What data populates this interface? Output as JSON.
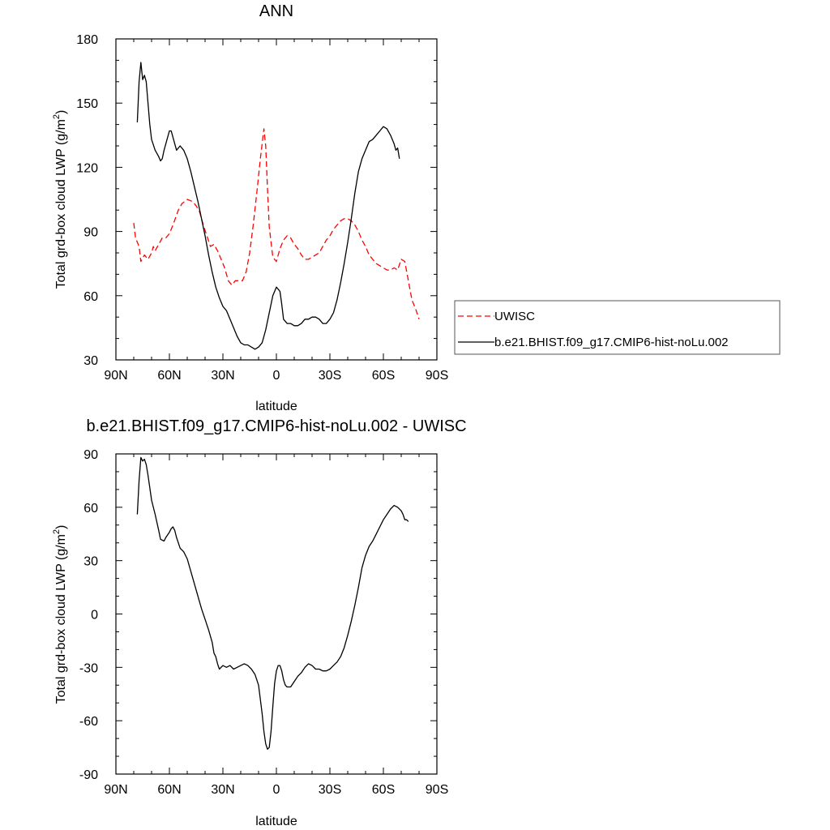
{
  "chart_data": [
    {
      "type": "line",
      "title": "ANN",
      "xlabel": "latitude",
      "ylabel_main": "Total grd-box cloud LWP (g/m",
      "ylabel_sup": "2",
      "ylabel_close": ")",
      "xlim": [
        90,
        -90
      ],
      "ylim": [
        30,
        180
      ],
      "x_ticks": [
        90,
        60,
        30,
        0,
        -30,
        -60,
        -90
      ],
      "x_tick_labels": [
        "90N",
        "60N",
        "30N",
        "0",
        "30S",
        "60S",
        "90S"
      ],
      "y_ticks": [
        30,
        60,
        90,
        120,
        150,
        180
      ],
      "y_tick_labels": [
        "30",
        "60",
        "90",
        "120",
        "150",
        "180"
      ],
      "legend": {
        "placement": "right",
        "entries": [
          {
            "label": "UWISC",
            "color": "#ff0000",
            "dash": "dashed"
          },
          {
            "label": "b.e21.BHIST.f09_g17.CMIP6-hist-noLu.002",
            "color": "#000000",
            "dash": "solid"
          }
        ]
      },
      "series": [
        {
          "name": "UWISC",
          "color": "#ff0000",
          "dash": "dashed",
          "points": [
            [
              80,
              94
            ],
            [
              79,
              87
            ],
            [
              77,
              83
            ],
            [
              76,
              76
            ],
            [
              74,
              79
            ],
            [
              72,
              77
            ],
            [
              70,
              80
            ],
            [
              69,
              83
            ],
            [
              68,
              81
            ],
            [
              66,
              84
            ],
            [
              64,
              87
            ],
            [
              62,
              87
            ],
            [
              60,
              89
            ],
            [
              58,
              93
            ],
            [
              55,
              100
            ],
            [
              53,
              103
            ],
            [
              50,
              105
            ],
            [
              47,
              104
            ],
            [
              45,
              102
            ],
            [
              43,
              99
            ],
            [
              41,
              93
            ],
            [
              39,
              88
            ],
            [
              37,
              83
            ],
            [
              35,
              84
            ],
            [
              33,
              81
            ],
            [
              31,
              77
            ],
            [
              29,
              73
            ],
            [
              27,
              67
            ],
            [
              25,
              65
            ],
            [
              23,
              67
            ],
            [
              21,
              67
            ],
            [
              19,
              67
            ],
            [
              17,
              71
            ],
            [
              15,
              80
            ],
            [
              13,
              93
            ],
            [
              11,
              108
            ],
            [
              9,
              124
            ],
            [
              7,
              138
            ],
            [
              6,
              130
            ],
            [
              5,
              110
            ],
            [
              4,
              92
            ],
            [
              2,
              78
            ],
            [
              0,
              76
            ],
            [
              -2,
              82
            ],
            [
              -4,
              86
            ],
            [
              -6,
              88
            ],
            [
              -8,
              87
            ],
            [
              -10,
              84
            ],
            [
              -12,
              82
            ],
            [
              -14,
              79
            ],
            [
              -16,
              77
            ],
            [
              -18,
              77
            ],
            [
              -20,
              78
            ],
            [
              -22,
              79
            ],
            [
              -24,
              80
            ],
            [
              -26,
              83
            ],
            [
              -28,
              86
            ],
            [
              -30,
              88
            ],
            [
              -32,
              91
            ],
            [
              -34,
              93
            ],
            [
              -36,
              95
            ],
            [
              -38,
              96
            ],
            [
              -40,
              96
            ],
            [
              -42,
              95
            ],
            [
              -44,
              93
            ],
            [
              -46,
              90
            ],
            [
              -48,
              86
            ],
            [
              -50,
              83
            ],
            [
              -52,
              79
            ],
            [
              -54,
              77
            ],
            [
              -56,
              75
            ],
            [
              -58,
              74
            ],
            [
              -60,
              73
            ],
            [
              -62,
              72
            ],
            [
              -64,
              72
            ],
            [
              -66,
              73
            ],
            [
              -68,
              72
            ],
            [
              -70,
              77
            ],
            [
              -72,
              76
            ],
            [
              -74,
              67
            ],
            [
              -76,
              58
            ],
            [
              -78,
              54
            ],
            [
              -80,
              49
            ]
          ]
        },
        {
          "name": "b.e21.BHIST.f09_g17.CMIP6-hist-noLu.002",
          "color": "#000000",
          "dash": "solid",
          "points": [
            [
              78,
              141
            ],
            [
              77,
              160
            ],
            [
              76,
              169
            ],
            [
              75,
              161
            ],
            [
              74,
              163
            ],
            [
              73,
              160
            ],
            [
              72,
              150
            ],
            [
              71,
              140
            ],
            [
              70,
              133
            ],
            [
              68,
              128
            ],
            [
              66,
              125
            ],
            [
              65,
              123
            ],
            [
              64,
              124
            ],
            [
              63,
              128
            ],
            [
              62,
              131
            ],
            [
              61,
              134
            ],
            [
              60,
              137
            ],
            [
              59,
              137
            ],
            [
              58,
              134
            ],
            [
              57,
              131
            ],
            [
              56,
              128
            ],
            [
              54,
              130
            ],
            [
              52,
              128
            ],
            [
              50,
              124
            ],
            [
              48,
              118
            ],
            [
              46,
              111
            ],
            [
              44,
              104
            ],
            [
              42,
              96
            ],
            [
              40,
              88
            ],
            [
              38,
              79
            ],
            [
              36,
              71
            ],
            [
              34,
              64
            ],
            [
              32,
              59
            ],
            [
              30,
              55
            ],
            [
              28,
              53
            ],
            [
              26,
              49
            ],
            [
              24,
              45
            ],
            [
              22,
              41
            ],
            [
              20,
              38
            ],
            [
              18,
              37
            ],
            [
              16,
              37
            ],
            [
              14,
              36
            ],
            [
              12,
              35
            ],
            [
              10,
              36
            ],
            [
              8,
              38
            ],
            [
              6,
              44
            ],
            [
              4,
              52
            ],
            [
              2,
              60
            ],
            [
              0,
              64
            ],
            [
              -2,
              62
            ],
            [
              -3,
              56
            ],
            [
              -4,
              49
            ],
            [
              -6,
              47
            ],
            [
              -8,
              47
            ],
            [
              -10,
              46
            ],
            [
              -12,
              46
            ],
            [
              -14,
              47
            ],
            [
              -16,
              49
            ],
            [
              -18,
              49
            ],
            [
              -20,
              50
            ],
            [
              -22,
              50
            ],
            [
              -24,
              49
            ],
            [
              -26,
              47
            ],
            [
              -28,
              47
            ],
            [
              -30,
              49
            ],
            [
              -32,
              52
            ],
            [
              -34,
              58
            ],
            [
              -36,
              66
            ],
            [
              -38,
              75
            ],
            [
              -40,
              85
            ],
            [
              -42,
              96
            ],
            [
              -44,
              108
            ],
            [
              -46,
              118
            ],
            [
              -48,
              124
            ],
            [
              -50,
              128
            ],
            [
              -52,
              132
            ],
            [
              -54,
              133
            ],
            [
              -56,
              135
            ],
            [
              -58,
              137
            ],
            [
              -60,
              139
            ],
            [
              -62,
              138
            ],
            [
              -64,
              135
            ],
            [
              -66,
              131
            ],
            [
              -67,
              128
            ],
            [
              -68,
              129
            ],
            [
              -69,
              124
            ]
          ]
        }
      ]
    },
    {
      "type": "line",
      "title": "b.e21.BHIST.f09_g17.CMIP6-hist-noLu.002 - UWISC",
      "xlabel": "latitude",
      "ylabel_main": "Total grd-box cloud LWP (g/m",
      "ylabel_sup": "2",
      "ylabel_close": ")",
      "xlim": [
        90,
        -90
      ],
      "ylim": [
        -90,
        90
      ],
      "x_ticks": [
        90,
        60,
        30,
        0,
        -30,
        -60,
        -90
      ],
      "x_tick_labels": [
        "90N",
        "60N",
        "30N",
        "0",
        "30S",
        "60S",
        "90S"
      ],
      "y_ticks": [
        -90,
        -60,
        -30,
        0,
        30,
        60,
        90
      ],
      "y_tick_labels": [
        "-90",
        "-60",
        "-30",
        "0",
        "30",
        "60",
        "90"
      ],
      "series": [
        {
          "color": "#000000",
          "dash": "solid",
          "points": [
            [
              78,
              56
            ],
            [
              77,
              75
            ],
            [
              76,
              88
            ],
            [
              75,
              86
            ],
            [
              74,
              87
            ],
            [
              73,
              84
            ],
            [
              72,
              78
            ],
            [
              71,
              71
            ],
            [
              70,
              64
            ],
            [
              68,
              56
            ],
            [
              66,
              47
            ],
            [
              65,
              42
            ],
            [
              63,
              41
            ],
            [
              62,
              43
            ],
            [
              60,
              46
            ],
            [
              59,
              48
            ],
            [
              58,
              49
            ],
            [
              57,
              47
            ],
            [
              56,
              43
            ],
            [
              55,
              40
            ],
            [
              54,
              37
            ],
            [
              52,
              35
            ],
            [
              50,
              31
            ],
            [
              48,
              24
            ],
            [
              46,
              17
            ],
            [
              44,
              10
            ],
            [
              42,
              3
            ],
            [
              40,
              -3
            ],
            [
              38,
              -9
            ],
            [
              36,
              -16
            ],
            [
              35,
              -22
            ],
            [
              34,
              -24
            ],
            [
              33,
              -28
            ],
            [
              32,
              -31
            ],
            [
              30,
              -29
            ],
            [
              28,
              -30
            ],
            [
              26,
              -29
            ],
            [
              24,
              -31
            ],
            [
              22,
              -30
            ],
            [
              20,
              -29
            ],
            [
              18,
              -28
            ],
            [
              16,
              -29
            ],
            [
              14,
              -31
            ],
            [
              12,
              -34
            ],
            [
              10,
              -40
            ],
            [
              9,
              -48
            ],
            [
              8,
              -56
            ],
            [
              7,
              -66
            ],
            [
              6,
              -73
            ],
            [
              5,
              -76
            ],
            [
              4,
              -75
            ],
            [
              3,
              -66
            ],
            [
              2,
              -52
            ],
            [
              1,
              -39
            ],
            [
              0,
              -32
            ],
            [
              -1,
              -29
            ],
            [
              -2,
              -29
            ],
            [
              -3,
              -32
            ],
            [
              -4,
              -37
            ],
            [
              -5,
              -40
            ],
            [
              -6,
              -41
            ],
            [
              -8,
              -41
            ],
            [
              -10,
              -38
            ],
            [
              -12,
              -35
            ],
            [
              -14,
              -33
            ],
            [
              -16,
              -30
            ],
            [
              -18,
              -28
            ],
            [
              -20,
              -29
            ],
            [
              -22,
              -31
            ],
            [
              -24,
              -31
            ],
            [
              -26,
              -32
            ],
            [
              -28,
              -32
            ],
            [
              -30,
              -31
            ],
            [
              -32,
              -29
            ],
            [
              -34,
              -27
            ],
            [
              -36,
              -24
            ],
            [
              -38,
              -19
            ],
            [
              -40,
              -12
            ],
            [
              -42,
              -4
            ],
            [
              -44,
              5
            ],
            [
              -46,
              15
            ],
            [
              -48,
              26
            ],
            [
              -50,
              33
            ],
            [
              -52,
              38
            ],
            [
              -54,
              41
            ],
            [
              -56,
              45
            ],
            [
              -58,
              49
            ],
            [
              -60,
              53
            ],
            [
              -62,
              56
            ],
            [
              -64,
              59
            ],
            [
              -66,
              61
            ],
            [
              -68,
              60
            ],
            [
              -70,
              58
            ],
            [
              -71,
              56
            ],
            [
              -72,
              53
            ],
            [
              -73,
              53
            ],
            [
              -74,
              52
            ]
          ]
        }
      ]
    }
  ]
}
